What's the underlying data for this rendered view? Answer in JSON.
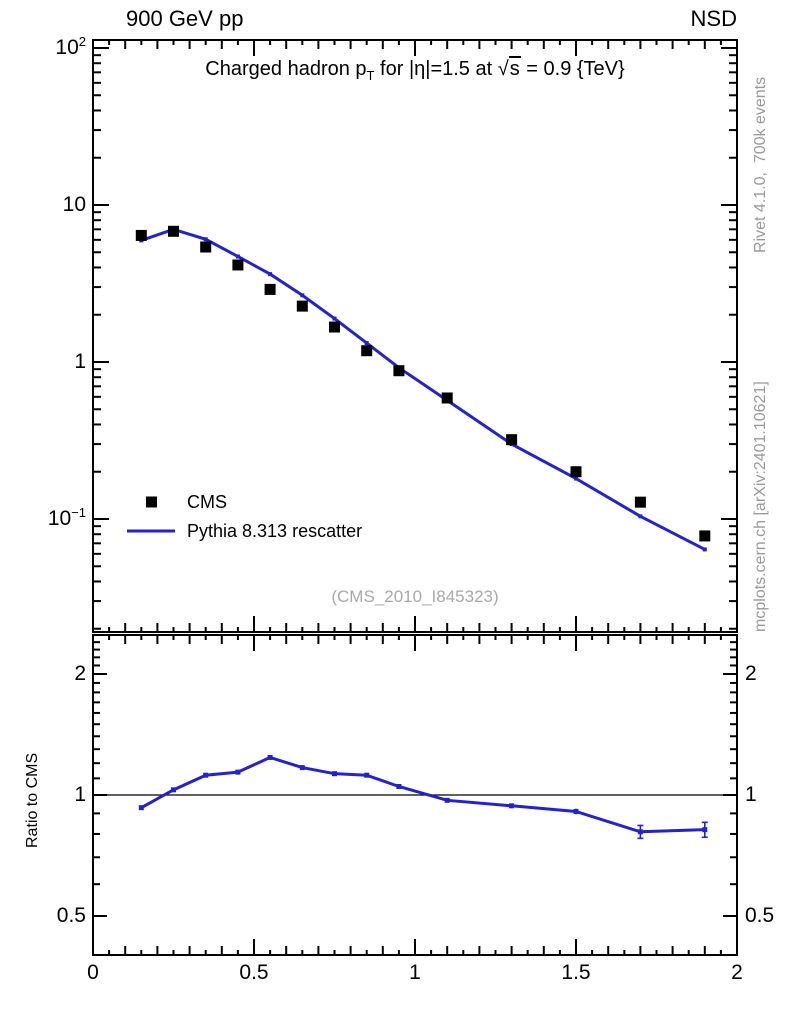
{
  "header": {
    "left_title": "900 GeV pp",
    "right_title": "NSD"
  },
  "title": {
    "p1": "Charged hadron p",
    "sub": "T",
    "p2": " for |η|=1.5 at ",
    "sqrt_sym": "√",
    "sqrt_arg": "s",
    "p3": " = 0.9 {TeV}"
  },
  "legend": {
    "items": [
      {
        "label": "CMS",
        "marker": "black-filled-square"
      },
      {
        "label": "Pythia 8.313 rescatter",
        "marker": "blue-line"
      }
    ]
  },
  "watermark": "(CMS_2010_I845323)",
  "side_notes": {
    "top_rotated": "Rivet 4.1.0,  700k events",
    "bottom_rotated": "mcplots.cern.ch [arXiv:2401.10621]"
  },
  "ratio_panel": {
    "ylabel": "Ratio to CMS"
  },
  "colors": {
    "model_blue": "#2222d2",
    "data_black": "#000000",
    "muted_gray": "#999999",
    "frame": "#000000"
  },
  "axes": {
    "x_ticks": [
      {
        "label": "0",
        "v": 0
      },
      {
        "label": "0.5",
        "v": 0.5
      },
      {
        "label": "1",
        "v": 1
      },
      {
        "label": "1.5",
        "v": 1.5
      },
      {
        "label": "2",
        "v": 2
      }
    ],
    "main_y_ticks": [
      {
        "base": "10",
        "exp": "2",
        "v": 100
      },
      {
        "base": "10",
        "exp": "",
        "v": 10
      },
      {
        "base": "1",
        "exp": "",
        "v": 1
      },
      {
        "base": "10",
        "exp": "−1",
        "v": 0.1
      }
    ],
    "ratio_y_ticks": [
      {
        "label": "2",
        "v": 2
      },
      {
        "label": "1",
        "v": 1
      },
      {
        "label": "0.5",
        "v": 0.5
      }
    ]
  },
  "chart_data": [
    {
      "type": "scatter",
      "title": "Charged hadron pT for |η|=1.5 at √s = 0.9 {TeV}",
      "xlabel": "",
      "ylabel": "",
      "yscale": "log",
      "xlim": [
        0,
        2
      ],
      "ylim": [
        0.02,
        110
      ],
      "grid": false,
      "legend_position": "left-middle",
      "x": [
        0.15,
        0.25,
        0.35,
        0.45,
        0.55,
        0.65,
        0.75,
        0.85,
        0.95,
        1.1,
        1.3,
        1.5,
        1.7,
        1.9
      ],
      "series": [
        {
          "name": "CMS",
          "style": "scatter",
          "marker": "filled-square",
          "color": "#000000",
          "values": [
            6.4,
            6.8,
            5.4,
            4.15,
            2.9,
            2.27,
            1.67,
            1.18,
            0.88,
            0.59,
            0.32,
            0.2,
            0.128,
            0.078
          ]
        },
        {
          "name": "Pythia 8.313 rescatter",
          "style": "line",
          "marker": "small-square",
          "color": "#2222d2",
          "values": [
            5.95,
            7.0,
            6.05,
            4.7,
            3.63,
            2.66,
            1.89,
            1.32,
            0.92,
            0.57,
            0.3,
            0.181,
            0.104,
            0.064
          ]
        }
      ]
    },
    {
      "type": "line",
      "title": "",
      "xlabel": "",
      "ylabel": "Ratio to CMS",
      "yscale": "log",
      "xlim": [
        0,
        2
      ],
      "ylim": [
        0.4,
        2.5
      ],
      "grid": false,
      "reference_line_y": 1,
      "x": [
        0.15,
        0.25,
        0.35,
        0.45,
        0.55,
        0.65,
        0.75,
        0.85,
        0.95,
        1.1,
        1.3,
        1.5,
        1.7,
        1.9
      ],
      "series": [
        {
          "name": "Pythia 8.313 rescatter / CMS",
          "style": "line",
          "marker": "small-square",
          "color": "#2222d2",
          "values": [
            0.93,
            1.03,
            1.12,
            1.14,
            1.24,
            1.17,
            1.13,
            1.12,
            1.05,
            0.97,
            0.94,
            0.91,
            0.81,
            0.82
          ],
          "yerr": [
            0.008,
            0.008,
            0.008,
            0.008,
            0.008,
            0.008,
            0.008,
            0.008,
            0.008,
            0.01,
            0.012,
            0.015,
            0.03,
            0.035
          ]
        }
      ]
    }
  ]
}
